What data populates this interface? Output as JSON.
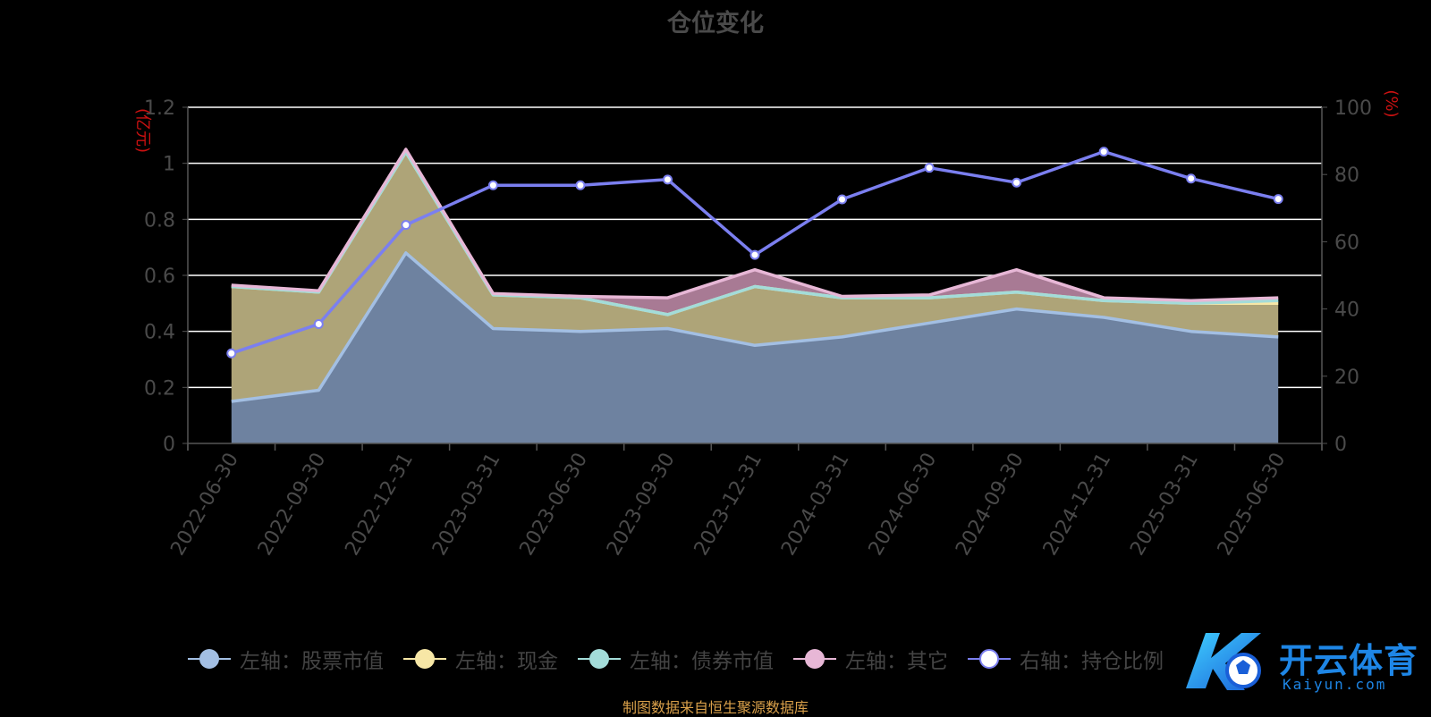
{
  "title": "仓位变化",
  "source_note": "制图数据来自恒生聚源数据库",
  "watermark": {
    "brand_cn": "开云体育",
    "brand_url": "Kaiyun.com"
  },
  "legend": [
    {
      "label": "左轴：股票市值",
      "color": "#a3bfe3"
    },
    {
      "label": "左轴：现金",
      "color": "#f7e7a6"
    },
    {
      "label": "左轴：债券市值",
      "color": "#a3dcd9"
    },
    {
      "label": "左轴：其它",
      "color": "#e7b7d6"
    },
    {
      "label": "右轴：持仓比例",
      "color": "#7b7ff0"
    }
  ],
  "chart_data": {
    "type": "area",
    "categories": [
      "2022-06-30",
      "2022-09-30",
      "2022-12-31",
      "2023-03-31",
      "2023-06-30",
      "2023-09-30",
      "2023-12-31",
      "2024-03-31",
      "2024-06-30",
      "2024-09-30",
      "2024-12-31",
      "2025-03-31",
      "2025-06-30"
    ],
    "left_axis": {
      "label": "(亿元)",
      "ylim": [
        0,
        1.2
      ],
      "ticks": [
        "0",
        "0.2",
        "0.4",
        "0.6",
        "0.8",
        "1",
        "1.2"
      ]
    },
    "right_axis": {
      "label": "(%)",
      "ylim": [
        0,
        100
      ],
      "ticks": [
        "0",
        "20",
        "40",
        "60",
        "80",
        "100"
      ]
    },
    "stacked": true,
    "series": [
      {
        "name": "左轴：股票市值",
        "axis": "left",
        "color": "#a3bfe3",
        "fill": "#6e82a0",
        "values": [
          0.15,
          0.19,
          0.68,
          0.41,
          0.4,
          0.41,
          0.35,
          0.38,
          0.43,
          0.48,
          0.45,
          0.4,
          0.38
        ]
      },
      {
        "name": "左轴：现金",
        "axis": "left",
        "color": "#f7e7a6",
        "fill": "#aea478",
        "values": [
          0.41,
          0.35,
          0.36,
          0.12,
          0.12,
          0.05,
          0.21,
          0.14,
          0.09,
          0.06,
          0.06,
          0.1,
          0.12
        ]
      },
      {
        "name": "左轴：债券市值",
        "axis": "left",
        "color": "#a3dcd9",
        "fill": "#7fa7a3",
        "values": [
          0,
          0,
          0,
          0,
          0,
          0,
          0,
          0,
          0,
          0,
          0,
          0,
          0.01
        ]
      },
      {
        "name": "左轴：其它",
        "axis": "left",
        "color": "#e7b7d6",
        "fill": "#a87a94",
        "values": [
          0.005,
          0.005,
          0.01,
          0.005,
          0.005,
          0.06,
          0.06,
          0.005,
          0.01,
          0.08,
          0.01,
          0.01,
          0.01
        ]
      },
      {
        "name": "右轴：持仓比例",
        "axis": "right",
        "type": "line",
        "color": "#7b7ff0",
        "values": [
          26.8,
          35.5,
          65.0,
          76.8,
          76.8,
          78.5,
          56.1,
          72.6,
          82.0,
          77.6,
          86.8,
          78.8,
          72.7
        ]
      }
    ],
    "grid": true,
    "legend_position": "bottom"
  }
}
